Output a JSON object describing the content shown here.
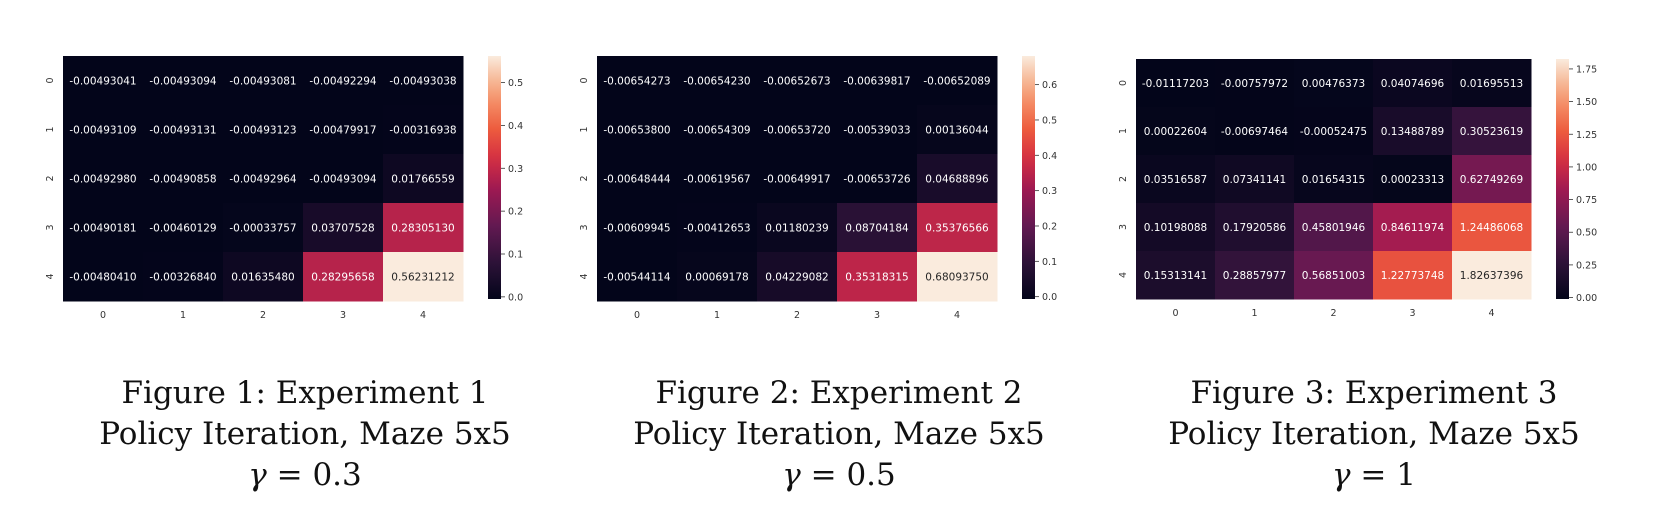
{
  "figures": [
    {
      "caption": {
        "line1": "Figure 1: Experiment 1",
        "line2": "Policy Iteration, Maze 5x5",
        "gamma_symbol": "γ",
        "gamma_text": " = 0.3"
      },
      "chart_data": {
        "type": "heatmap",
        "title": "",
        "xlabel": "",
        "ylabel": "",
        "x_tick_labels": [
          "0",
          "1",
          "2",
          "3",
          "4"
        ],
        "y_tick_labels": [
          "0",
          "1",
          "2",
          "3",
          "4"
        ],
        "cell_labels": [
          [
            "-0.00493041",
            "-0.00493094",
            "-0.00493081",
            "-0.00492294",
            "-0.00493038"
          ],
          [
            "-0.00493109",
            "-0.00493131",
            "-0.00493123",
            "-0.00479917",
            "-0.00316938"
          ],
          [
            "-0.00492980",
            "-0.00490858",
            "-0.00492964",
            "-0.00493094",
            "0.01766559"
          ],
          [
            "-0.00490181",
            "-0.00460129",
            "-0.00033757",
            "0.03707528",
            "0.28305130"
          ],
          [
            "-0.00480410",
            "-0.00326840",
            "0.01635480",
            "0.28295658",
            "0.56231212"
          ]
        ],
        "values": [
          [
            -0.00493041,
            -0.00493094,
            -0.00493081,
            -0.00492294,
            -0.00493038
          ],
          [
            -0.00493109,
            -0.00493131,
            -0.00493123,
            -0.00479917,
            -0.00316938
          ],
          [
            -0.0049298,
            -0.00490858,
            -0.00492964,
            -0.00493094,
            0.01766559
          ],
          [
            -0.00490181,
            -0.00460129,
            -0.00033757,
            0.03707528,
            0.2830513
          ],
          [
            -0.0048041,
            -0.0032684,
            0.0163548,
            0.28295658,
            0.56231212
          ]
        ],
        "colorbar_ticks": [
          0.0,
          0.1,
          0.2,
          0.3,
          0.4,
          0.5
        ],
        "colorbar_tick_labels": [
          "0.0",
          "0.1",
          "0.2",
          "0.3",
          "0.4",
          "0.5"
        ],
        "colorbar_range": [
          -0.005,
          0.562
        ],
        "colormap": "rocket"
      }
    },
    {
      "caption": {
        "line1": "Figure 2: Experiment 2",
        "line2": "Policy Iteration, Maze 5x5",
        "gamma_symbol": "γ",
        "gamma_text": " = 0.5"
      },
      "chart_data": {
        "type": "heatmap",
        "title": "",
        "xlabel": "",
        "ylabel": "",
        "x_tick_labels": [
          "0",
          "1",
          "2",
          "3",
          "4"
        ],
        "y_tick_labels": [
          "0",
          "1",
          "2",
          "3",
          "4"
        ],
        "cell_labels": [
          [
            "-0.00654273",
            "-0.00654230",
            "-0.00652673",
            "-0.00639817",
            "-0.00652089"
          ],
          [
            "-0.00653800",
            "-0.00654309",
            "-0.00653720",
            "-0.00539033",
            "0.00136044"
          ],
          [
            "-0.00648444",
            "-0.00619567",
            "-0.00649917",
            "-0.00653726",
            "0.04688896"
          ],
          [
            "-0.00609945",
            "-0.00412653",
            "0.01180239",
            "0.08704184",
            "0.35376566"
          ],
          [
            "-0.00544114",
            "0.00069178",
            "0.04229082",
            "0.35318315",
            "0.68093750"
          ]
        ],
        "values": [
          [
            -0.00654273,
            -0.0065423,
            -0.00652673,
            -0.00639817,
            -0.00652089
          ],
          [
            -0.006538,
            -0.00654309,
            -0.0065372,
            -0.00539033,
            0.00136044
          ],
          [
            -0.00648444,
            -0.00619567,
            -0.00649917,
            -0.00653726,
            0.04688896
          ],
          [
            -0.00609945,
            -0.00412653,
            0.01180239,
            0.08704184,
            0.35376566
          ],
          [
            -0.00544114,
            0.00069178,
            0.04229082,
            0.35318315,
            0.6809375
          ]
        ],
        "colorbar_ticks": [
          0.0,
          0.1,
          0.2,
          0.3,
          0.4,
          0.5,
          0.6
        ],
        "colorbar_tick_labels": [
          "0.0",
          "0.1",
          "0.2",
          "0.3",
          "0.4",
          "0.5",
          "0.6"
        ],
        "colorbar_range": [
          -0.0066,
          0.681
        ],
        "colormap": "rocket"
      }
    },
    {
      "caption": {
        "line1": "Figure 3: Experiment 3",
        "line2": "Policy Iteration, Maze 5x5",
        "gamma_symbol": "γ",
        "gamma_text": " = 1"
      },
      "chart_data": {
        "type": "heatmap",
        "title": "",
        "xlabel": "",
        "ylabel": "",
        "x_tick_labels": [
          "0",
          "1",
          "2",
          "3",
          "4"
        ],
        "y_tick_labels": [
          "0",
          "1",
          "2",
          "3",
          "4"
        ],
        "cell_labels": [
          [
            "-0.01117203",
            "-0.00757972",
            "0.00476373",
            "0.04074696",
            "0.01695513"
          ],
          [
            "0.00022604",
            "-0.00697464",
            "-0.00052475",
            "0.13488789",
            "0.30523619"
          ],
          [
            "0.03516587",
            "0.07341141",
            "0.01654315",
            "0.00023313",
            "0.62749269"
          ],
          [
            "0.10198088",
            "0.17920586",
            "0.45801946",
            "0.84611974",
            "1.24486068"
          ],
          [
            "0.15313141",
            "0.28857977",
            "0.56851003",
            "1.22773748",
            "1.82637396"
          ]
        ],
        "values": [
          [
            -0.01117203,
            -0.00757972,
            0.00476373,
            0.04074696,
            0.01695513
          ],
          [
            0.00022604,
            -0.00697464,
            -0.00052475,
            0.13488789,
            0.30523619
          ],
          [
            0.03516587,
            0.07341141,
            0.01654315,
            0.00023313,
            0.62749269
          ],
          [
            0.10198088,
            0.17920586,
            0.45801946,
            0.84611974,
            1.24486068
          ],
          [
            0.15313141,
            0.28857977,
            0.56851003,
            1.22773748,
            1.82637396
          ]
        ],
        "colorbar_ticks": [
          0.0,
          0.25,
          0.5,
          0.75,
          1.0,
          1.25,
          1.5,
          1.75
        ],
        "colorbar_tick_labels": [
          "0.00",
          "0.25",
          "0.50",
          "0.75",
          "1.00",
          "1.25",
          "1.50",
          "1.75"
        ],
        "colorbar_range": [
          -0.011,
          1.826
        ],
        "colormap": "rocket"
      }
    }
  ]
}
